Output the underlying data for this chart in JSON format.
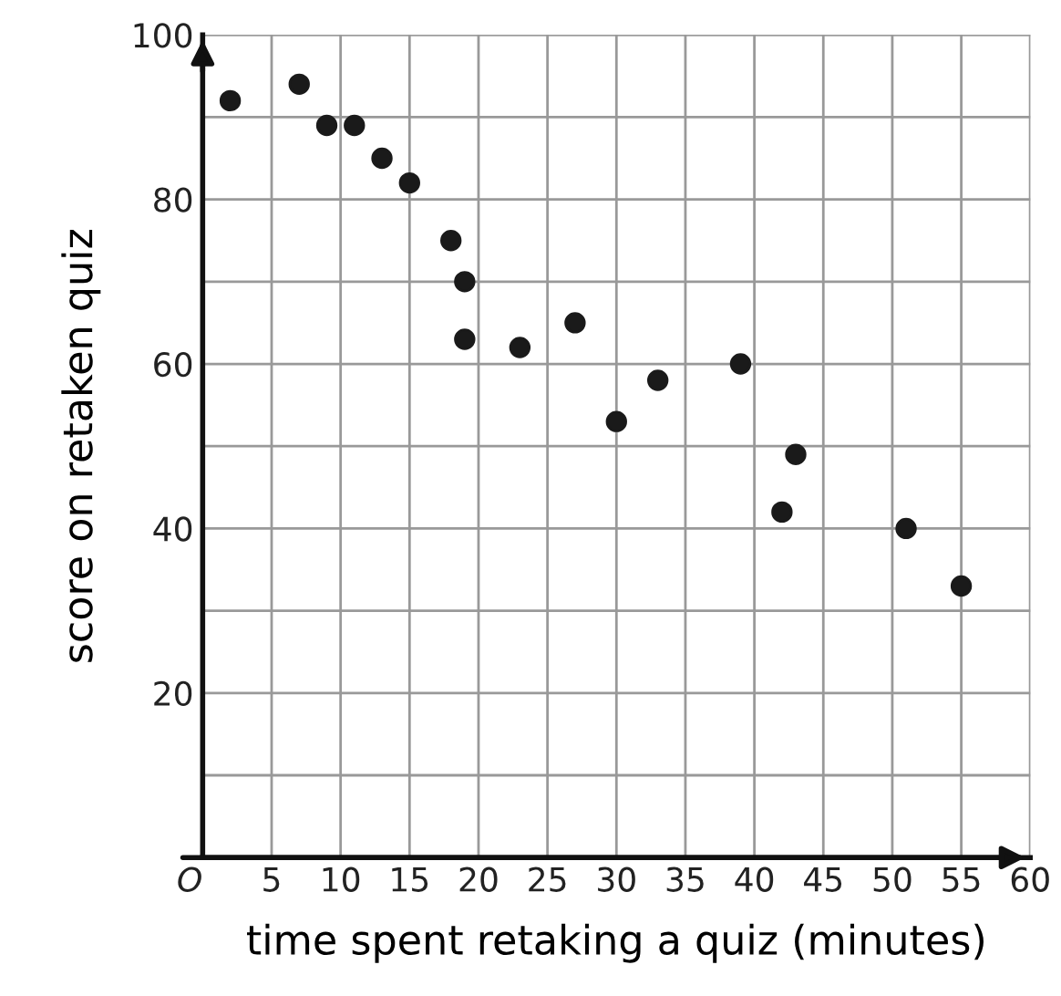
{
  "chart_data": {
    "type": "scatter",
    "xlabel": "time spent retaking a quiz (minutes)",
    "ylabel": "score on retaken quiz",
    "x": [
      2,
      7,
      9,
      11,
      13,
      15,
      18,
      19,
      19,
      23,
      27,
      30,
      33,
      39,
      42,
      43,
      51,
      55
    ],
    "values": [
      92,
      94,
      89,
      89,
      85,
      82,
      75,
      70,
      63,
      62,
      65,
      53,
      58,
      60,
      42,
      49,
      40,
      33
    ],
    "color": "#1a1a1a",
    "marker": "circle",
    "xlim": [
      0,
      60
    ],
    "ylim": [
      0,
      100
    ],
    "xticks": [
      {
        "value": 0,
        "label": "O"
      },
      5,
      10,
      15,
      20,
      25,
      30,
      35,
      40,
      45,
      50,
      55,
      60
    ],
    "yticks": [
      {
        "value": 10,
        "label": null
      },
      20,
      {
        "value": 30,
        "label": null
      },
      40,
      {
        "value": 50,
        "label": null
      },
      60,
      {
        "value": 70,
        "label": null
      },
      80,
      {
        "value": 90,
        "label": null
      },
      100
    ],
    "grid": true
  }
}
